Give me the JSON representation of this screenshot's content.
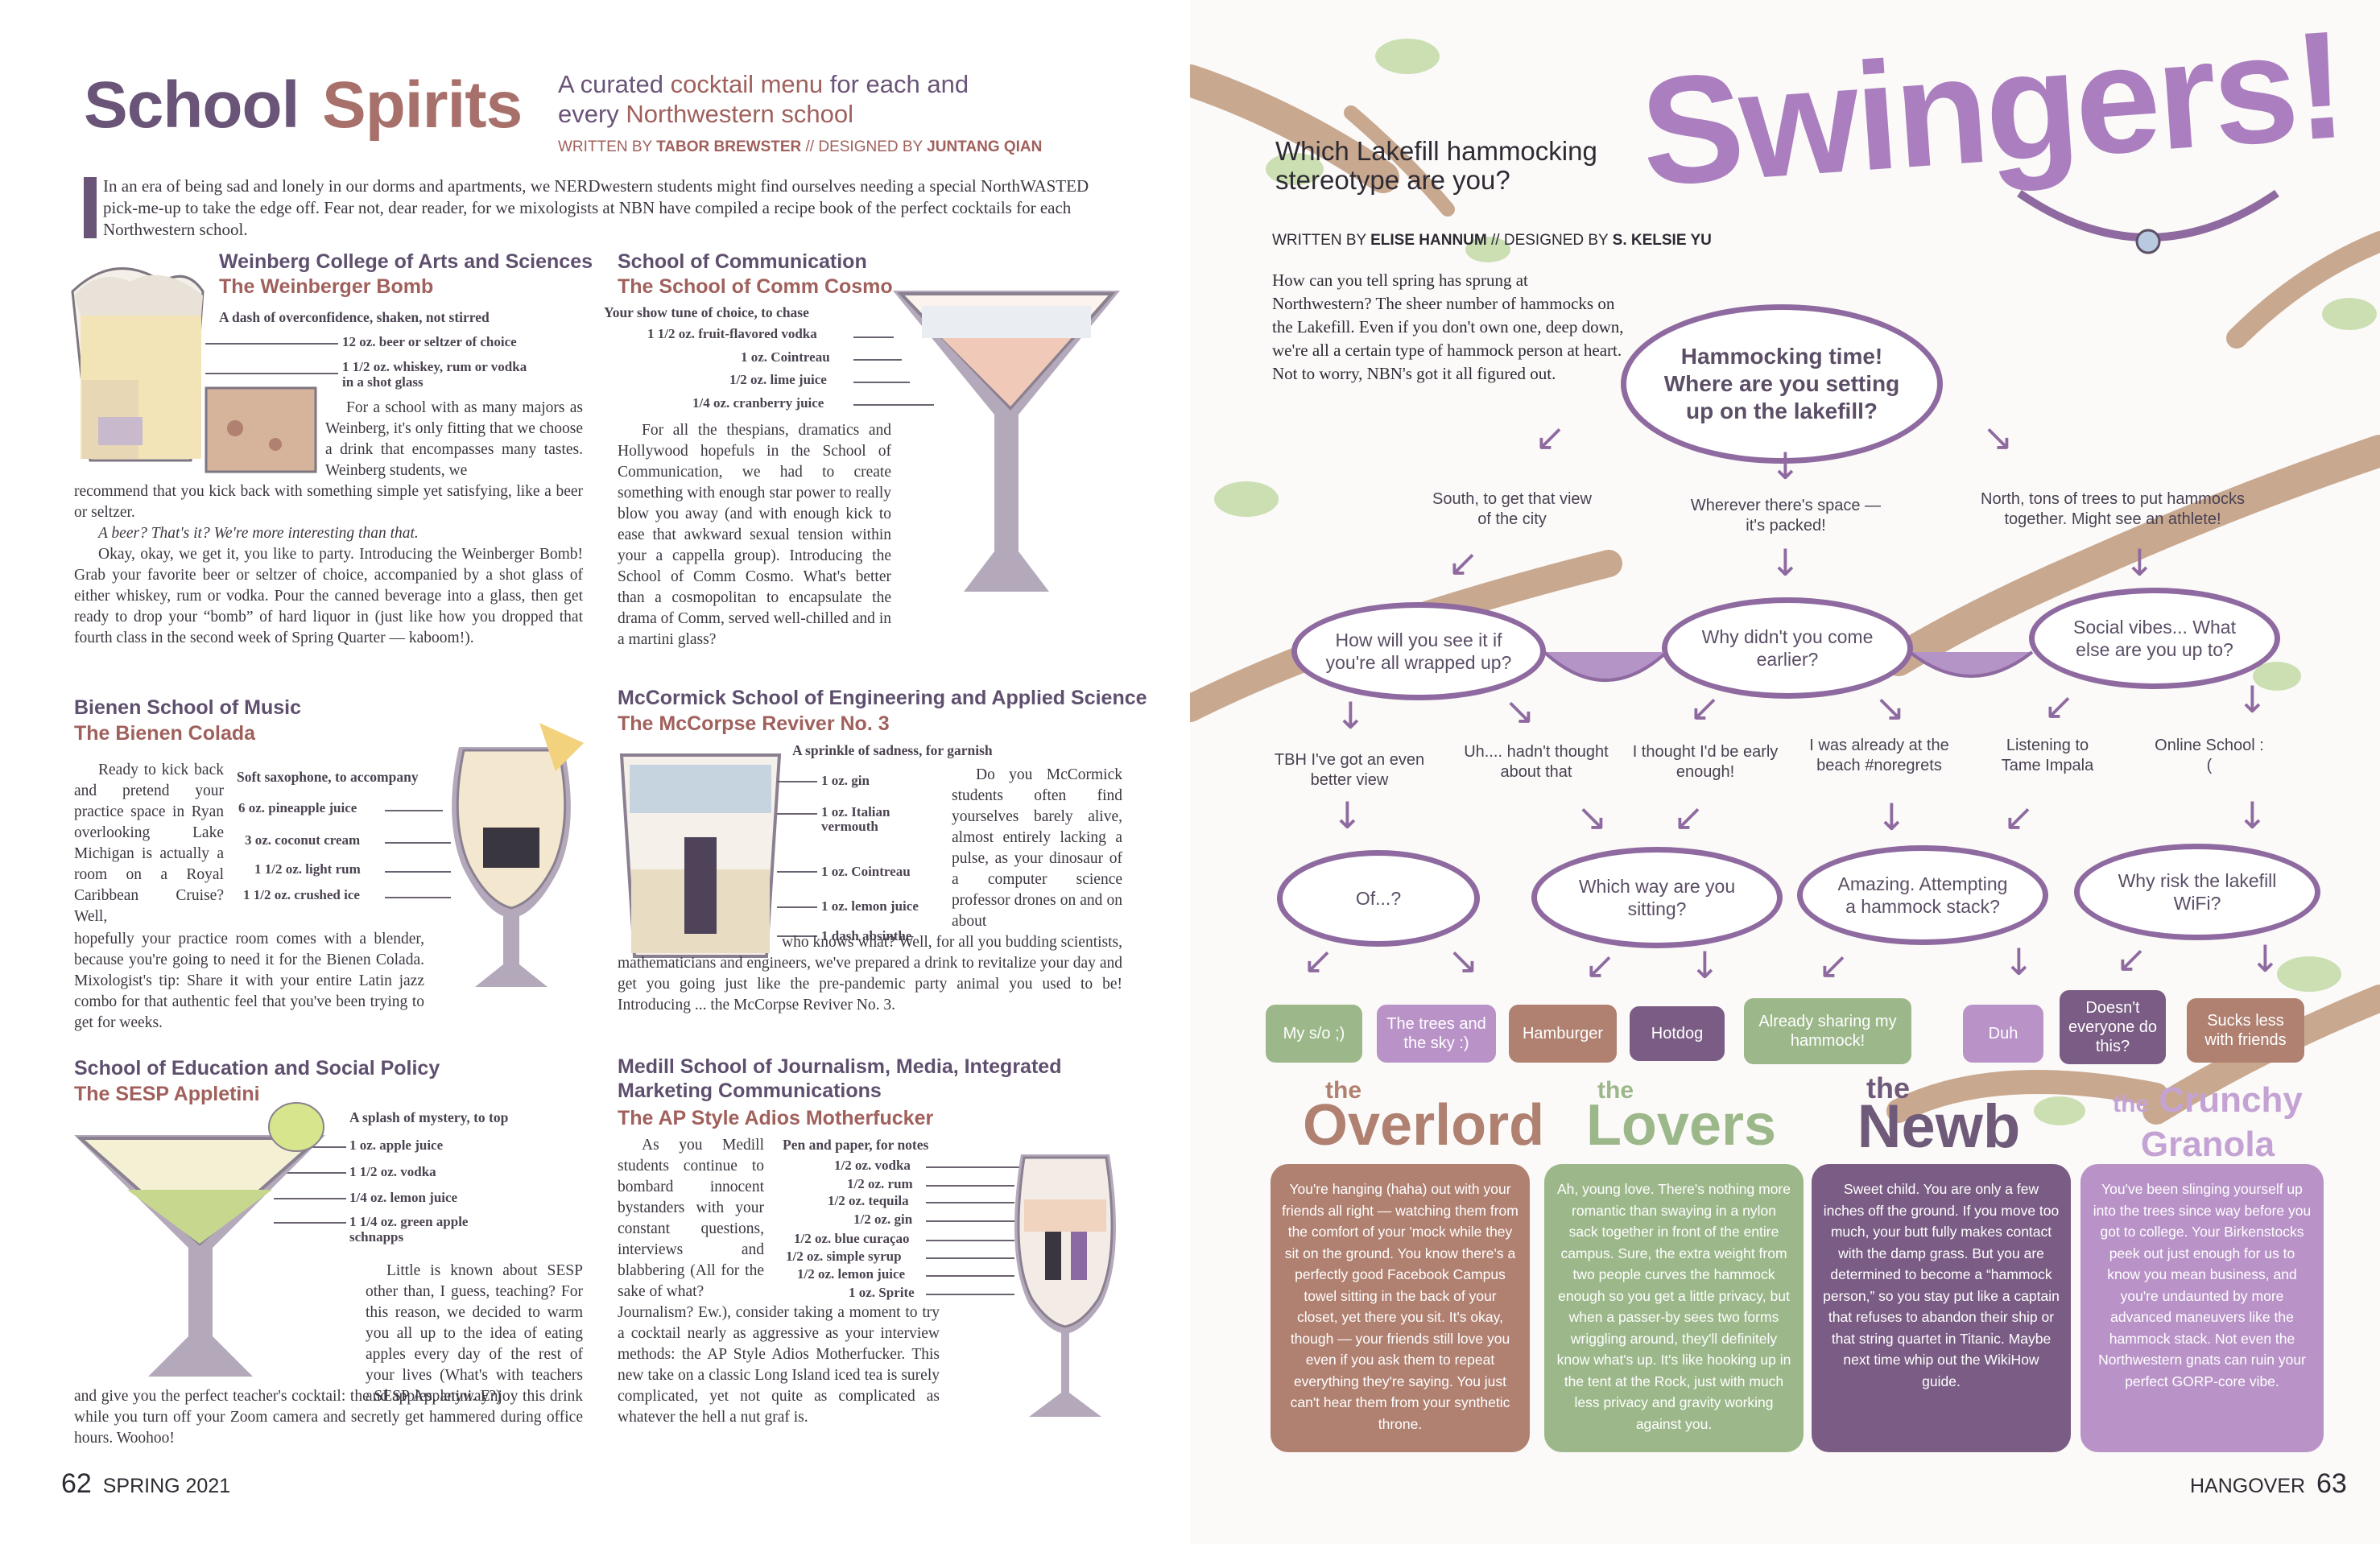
{
  "left": {
    "title_a": "School",
    "title_b": "Spirits",
    "subtitle_1": "A curated ",
    "subtitle_hl1": "cocktail menu",
    "subtitle_2": " for each and",
    "subtitle_3": "every ",
    "subtitle_hl2": "Northwestern school",
    "byline_a": "WRITTEN BY ",
    "byline_author": "TABOR BREWSTER",
    "byline_b": " // DESIGNED BY ",
    "byline_designer": "JUNTANG QIAN",
    "intro_dropcap": "I",
    "intro": "n an era of being sad and lonely in our dorms and apartments, we NERDwestern students might find ourselves needing a special NorthWASTED pick-me-up to take the edge off. Fear not, dear reader, for we mixologists at NBN have compiled a recipe book of the perfect cocktails for each Northwestern school.",
    "weinberg": {
      "school": "Weinberg College of Arts and Sciences",
      "drink": "The Weinberger Bomb",
      "tagline": "A dash of overconfidence, shaken, not stirred",
      "ingredients": [
        "12 oz. beer or seltzer of choice",
        "1 1/2 oz. whiskey, rum or vodka",
        "in a shot glass"
      ],
      "para1": "For a school with as many majors as Weinberg, it's only fitting that we choose a drink that encompasses many tastes. Weinberg students, we recommend that you kick back with something simple yet satisfying, like a beer or seltzer.",
      "para2": "A beer? That's it? We're more interesting than that.",
      "para3": "Okay, okay, we get it, you like to party. Introducing the Weinberger Bomb! Grab your favorite beer or seltzer of choice, accompanied by a shot glass of either whiskey, rum or vodka. Pour the canned beverage into a glass, then get ready to drop your “bomb” of hard liquor in (just like how you dropped that fourth class in the second week of Spring Quarter — kaboom!)."
    },
    "comm": {
      "school": "School of Communication",
      "drink": "The School of Comm Cosmo",
      "tagline": "Your show tune of choice, to chase",
      "ingredients": [
        "1 1/2 oz. fruit-flavored vodka",
        "1 oz. Cointreau",
        "1/2 oz. lime juice",
        "1/4 oz. cranberry juice"
      ],
      "para": "For all the thespians, dramatics and Hollywood hopefuls in the School of Communication, we had to create something with enough star power to really blow you away (and with enough kick to ease that awkward sexual tension within your a cappella group). Introducing the School of Comm Cosmo. What's better than a cosmopolitan to encapsulate the drama of Comm, served well-chilled and in a martini glass?"
    },
    "bienen": {
      "school": "Bienen School of Music",
      "drink": "The Bienen Colada",
      "tagline": "Soft saxophone, to accompany",
      "ingredients": [
        "6 oz. pineapple juice",
        "3 oz. coconut cream",
        "1 1/2 oz. light rum",
        "1 1/2 oz. crushed ice"
      ],
      "para": "Ready to kick back and pretend your practice space in Ryan overlooking Lake Michigan is actually a room on a Royal Caribbean Cruise? Well, hopefully your practice room comes with a blender, because you're going to need it for the Bienen Colada. Mixologist's tip: Share it with your entire Latin jazz combo for that authentic feel that you've been trying to get for weeks."
    },
    "mccormick": {
      "school": "McCormick School of Engineering and Applied Science",
      "drink": "The McCorpse Reviver No. 3",
      "tagline": "A sprinkle of sadness, for garnish",
      "ingredients": [
        "1 oz. gin",
        "1 oz. Italian vermouth",
        "1 oz. Cointreau",
        "1 oz. lemon juice",
        "1 dash absinthe"
      ],
      "para": "Do you McCormick students often find yourselves barely alive, almost entirely lacking a pulse, as your dinosaur of a computer science professor drones on and on about who knows what? Well, for all you budding scientists, mathematicians and engineers, we've prepared a drink to revitalize your day and get you going just like the pre-pandemic party animal you used to be! Introducing ... the McCorpse Reviver No. 3."
    },
    "sesp": {
      "school": "School of Education and Social Policy",
      "drink": "The SESP Appletini",
      "tagline": "A splash of mystery, to top",
      "ingredients": [
        "1 oz. apple juice",
        "1 1/2 oz. vodka",
        "1/4 oz. lemon juice",
        "1 1/4 oz. green apple schnapps"
      ],
      "para": "Little is known about SESP other than, I guess, teaching? For this reason, we decided to warm you all up to the idea of eating apples every day of the rest of your lives (What's with teachers and apples, anyway?) and give you the perfect teacher's cocktail: the SESP Appletini. Enjoy this drink while you turn off your Zoom camera and secretly get hammered during office hours. Woohoo!"
    },
    "medill": {
      "school": "Medill School of Journalism, Media, Integrated Marketing Communications",
      "drink": "The AP Style Adios Motherfucker",
      "tagline": "Pen and paper, for notes",
      "ingredients": [
        "1/2 oz. vodka",
        "1/2 oz. rum",
        "1/2 oz. tequila",
        "1/2 oz. gin",
        "1/2 oz. blue curaçao",
        "1/2 oz. simple syrup",
        "1/2 oz. lemon juice",
        "1 oz. Sprite"
      ],
      "para": "As you Medill students continue to bombard innocent bystanders with your constant questions, interviews and blabbering (All for the sake of what? Journalism? Ew.), consider taking a moment to try a cocktail nearly as aggressive as your interview methods: the AP Style Adios Motherfucker. This new take on a classic Long Island iced tea is surely complicated, yet not quite as complicated as whatever the hell a nut graf is."
    },
    "folio_num": "62",
    "folio_text": "SPRING 2021"
  },
  "right": {
    "title": "Swingers!",
    "kicker": "Which Lakefill hammocking stereotype are you?",
    "byline_a": "WRITTEN BY ",
    "byline_author": "ELISE HANNUM",
    "byline_b": " // DESIGNED BY ",
    "byline_designer": "S. KELSIE YU",
    "intro": "How can you tell spring has sprung at Northwestern? The sheer number of hammocks on the Lakefill. Even if you don't own one, deep down, we're all a certain type of hammock person at heart. Not to worry, NBN's got it all figured out.",
    "start": "Hammocking time! Where are you setting up on the lakefill?",
    "opt_south": "South, to get that view of the city",
    "opt_wherever": "Wherever there's space — it's packed!",
    "opt_north": "North, tons of trees to put hammocks together. Might see an athlete!",
    "q_see": "How will you see it if you're all wrapped up?",
    "q_earlier": "Why didn't you come earlier?",
    "q_social": "Social vibes... What else are you up to?",
    "a_tbh": "TBH I've got an even better view",
    "a_uh": "Uh.... hadn't thought about that",
    "a_early": "I thought I'd be early enough!",
    "a_beach": "I was already at the beach #noregrets",
    "a_tame": "Listening to Tame Impala",
    "a_online": "Online School :(",
    "q_of": "Of...?",
    "q_way": "Which way are you sitting?",
    "q_stack": "Amazing. Attempting a hammock stack?",
    "q_wifi": "Why risk the lakefill WiFi?",
    "r1": "My s/o ;)",
    "r2": "The trees and the sky :)",
    "r3": "Hamburger",
    "r4": "Hotdog",
    "r5": "Already sharing my hammock!",
    "r6": "Duh",
    "r7": "Doesn't everyone do this?",
    "r8": "Sucks less with friends",
    "t1a": "the",
    "t1b": "Overlord",
    "t2a": "the",
    "t2b": "Lovers",
    "t3a": "the",
    "t3b": "Newb",
    "t4a": "the",
    "t4b": "Crunchy Granola",
    "c1": "You're hanging (haha) out with your friends all right — watching them from the comfort of your 'mock while they sit on the ground. You know there's a perfectly good Facebook Campus towel sitting in the back of your closet, yet there you sit. It's okay, though — your friends still love you even if you ask them to repeat everything they're saying. You just can't hear them from your synthetic throne.",
    "c2": "Ah, young love. There's nothing more romantic than swaying in a nylon sack together in front of the entire campus. Sure, the extra weight from two people curves the hammock enough so you get a little privacy, but when a passer-by sees two forms wriggling around, they'll definitely know what's up. It's like hooking up in the tent at the Rock, just with much less privacy and gravity working against you.",
    "c3": "Sweet child. You are only a few inches off the ground. If you move too much, your butt fully makes contact with the damp grass. But you are determined to become a “hammock person,” so you stay put like a captain that refuses to abandon their ship or that string quartet in Titanic. Maybe next time whip out the WikiHow guide.",
    "c4": "You've been slinging yourself up into the trees since way before you got to college. Your Birkenstocks peek out just enough for us to know you mean business, and you're undaunted by more advanced maneuvers like the hammock stack. Not even the Northwestern gnats can ruin your perfect GORP-core vibe.",
    "folio_text": "HANGOVER",
    "folio_num": "63"
  },
  "colors": {
    "purple": "#8e6aa0",
    "rose": "#a0605c",
    "green": "#9cb88a",
    "lavender": "#b993c8",
    "brown": "#b08070",
    "plum": "#7a5c84"
  }
}
